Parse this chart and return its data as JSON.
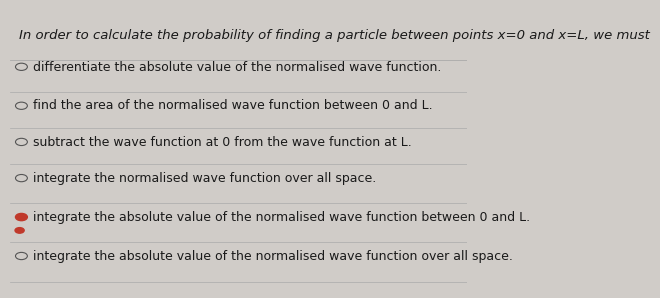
{
  "title": "In order to calculate the probability of finding a particle between points x=0 and x=L, we must",
  "title_fontsize": 9.5,
  "bg_color": "#d0ccc8",
  "panel_color": "#e8e4e0",
  "options": [
    {
      "text": "differentiate the absolute value of the normalised wave function.",
      "selected": false
    },
    {
      "text": "find the area of the normalised wave function between 0 and L.",
      "selected": false
    },
    {
      "text": "subtract the wave function at 0 from the wave function at L.",
      "selected": false
    },
    {
      "text": "integrate the normalised wave function over all space.",
      "selected": false
    },
    {
      "text": "integrate the absolute value of the normalised wave function between 0 and L.",
      "selected": true
    },
    {
      "text": "integrate the absolute value of the normalised wave function over all space.",
      "selected": false
    }
  ],
  "option_fontsize": 9.0,
  "text_color": "#1a1a1a",
  "selected_color": "#c0392b",
  "circle_color": "#555555",
  "line_color": "#aaaaaa"
}
